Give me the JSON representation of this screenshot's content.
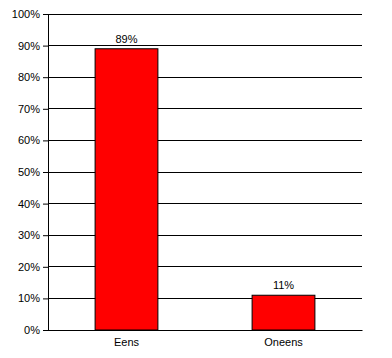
{
  "chart_data": {
    "type": "bar",
    "categories": [
      "Eens",
      "Oneens"
    ],
    "values": [
      89,
      11
    ],
    "value_labels": [
      "89%",
      "11%"
    ],
    "color": "#ff0000",
    "ylim": [
      0,
      100
    ],
    "yticks": [
      {
        "value": 0,
        "label": "0%"
      },
      {
        "value": 10,
        "label": "10%"
      },
      {
        "value": 20,
        "label": "20%"
      },
      {
        "value": 30,
        "label": "30%"
      },
      {
        "value": 40,
        "label": "40%"
      },
      {
        "value": 50,
        "label": "50%"
      },
      {
        "value": 60,
        "label": "60%"
      },
      {
        "value": 70,
        "label": "70%"
      },
      {
        "value": 80,
        "label": "80%"
      },
      {
        "value": 90,
        "label": "90%"
      },
      {
        "value": 100,
        "label": "100%"
      }
    ],
    "grid": true,
    "data_labels": true
  }
}
